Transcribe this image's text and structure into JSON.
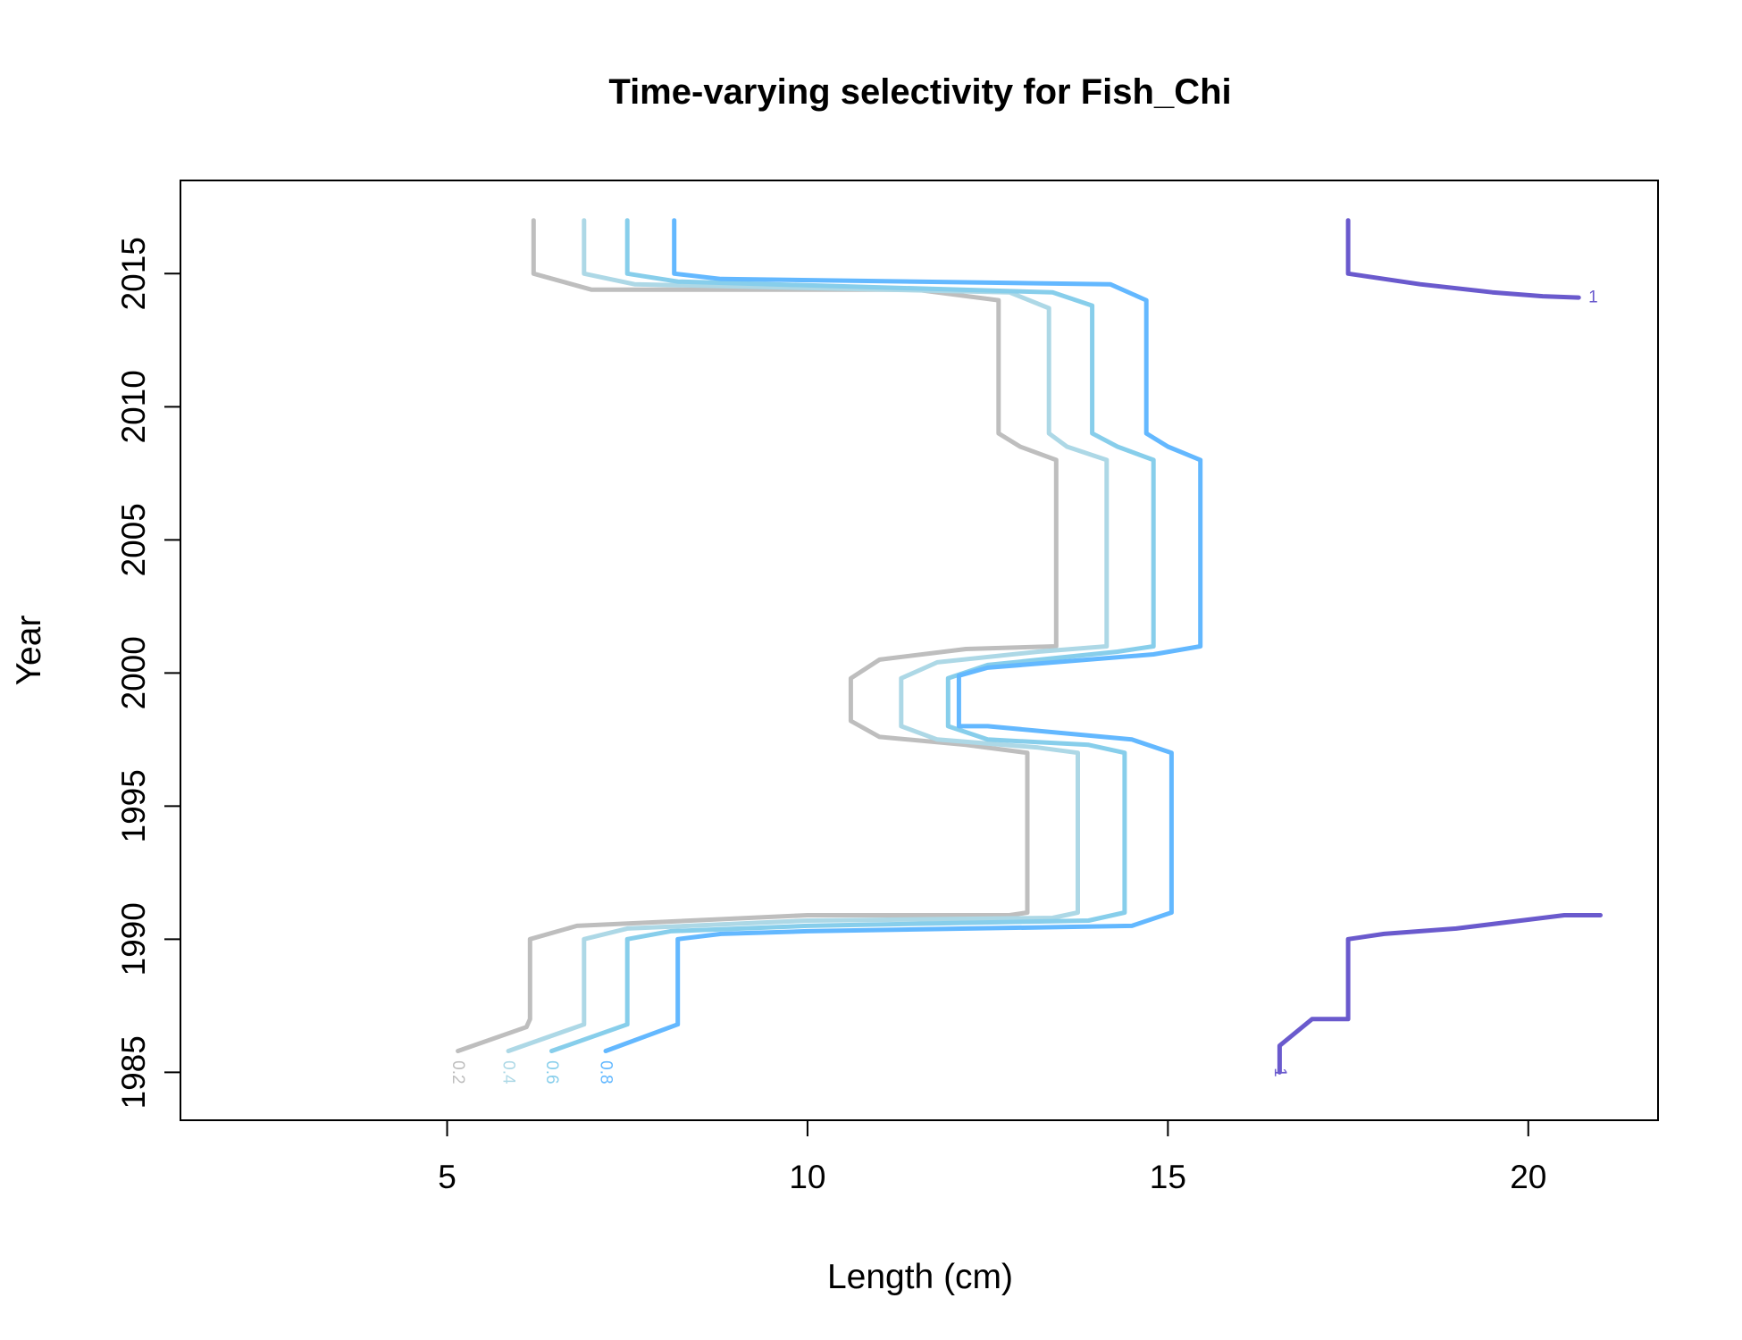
{
  "chart_data": {
    "type": "line",
    "title": "Time-varying selectivity for Fish_Chi",
    "xlabel": "Length (cm)",
    "ylabel": "Year",
    "xlim": [
      1.3,
      21.8
    ],
    "ylim": [
      1983.2,
      2018.5
    ],
    "xticks": [
      5,
      10,
      15,
      20
    ],
    "yticks": [
      1985,
      1990,
      1995,
      2000,
      2005,
      2010,
      2015
    ],
    "grid": false,
    "legend": "none",
    "series": [
      {
        "name": "0.2",
        "color": "#bebebe",
        "label_at": [
          5.15,
          1985.0
        ],
        "points": [
          [
            5.15,
            1985.8
          ],
          [
            6.1,
            1986.7
          ],
          [
            6.15,
            1987
          ],
          [
            6.15,
            1990
          ],
          [
            6.8,
            1990.5
          ],
          [
            10.0,
            1990.9
          ],
          [
            12.8,
            1990.9
          ],
          [
            13.05,
            1991
          ],
          [
            13.05,
            1997
          ],
          [
            12.2,
            1997.3
          ],
          [
            11.0,
            1997.6
          ],
          [
            10.6,
            1998.2
          ],
          [
            10.6,
            1999.8
          ],
          [
            11.0,
            2000.5
          ],
          [
            12.2,
            2000.9
          ],
          [
            13.45,
            2001
          ],
          [
            13.45,
            2008
          ],
          [
            12.95,
            2008.5
          ],
          [
            12.65,
            2009
          ],
          [
            12.65,
            2014
          ],
          [
            11.5,
            2014.4
          ],
          [
            7.0,
            2014.4
          ],
          [
            6.2,
            2015
          ],
          [
            6.2,
            2017
          ]
        ]
      },
      {
        "name": "0.4",
        "color": "#add8e6",
        "label_at": [
          5.85,
          1985.0
        ],
        "points": [
          [
            5.85,
            1985.8
          ],
          [
            6.9,
            1986.8
          ],
          [
            6.9,
            1990
          ],
          [
            7.5,
            1990.4
          ],
          [
            10.0,
            1990.7
          ],
          [
            13.4,
            1990.8
          ],
          [
            13.75,
            1991
          ],
          [
            13.75,
            1997
          ],
          [
            13.2,
            1997.2
          ],
          [
            11.8,
            1997.5
          ],
          [
            11.3,
            1998
          ],
          [
            11.3,
            1999.8
          ],
          [
            11.8,
            2000.4
          ],
          [
            13.2,
            2000.8
          ],
          [
            14.15,
            2001
          ],
          [
            14.15,
            2008
          ],
          [
            13.6,
            2008.5
          ],
          [
            13.35,
            2009
          ],
          [
            13.35,
            2013.7
          ],
          [
            12.8,
            2014.3
          ],
          [
            7.6,
            2014.6
          ],
          [
            6.9,
            2015
          ],
          [
            6.9,
            2017
          ]
        ]
      },
      {
        "name": "0.6",
        "color": "#87ceeb",
        "label_at": [
          6.45,
          1985.0
        ],
        "points": [
          [
            6.45,
            1985.8
          ],
          [
            7.5,
            1986.8
          ],
          [
            7.5,
            1990
          ],
          [
            8.1,
            1990.3
          ],
          [
            10.0,
            1990.5
          ],
          [
            13.9,
            1990.7
          ],
          [
            14.4,
            1991
          ],
          [
            14.4,
            1997
          ],
          [
            13.9,
            1997.3
          ],
          [
            12.5,
            1997.5
          ],
          [
            11.95,
            1998
          ],
          [
            11.95,
            1999.8
          ],
          [
            12.5,
            2000.3
          ],
          [
            14.3,
            2000.8
          ],
          [
            14.8,
            2001
          ],
          [
            14.8,
            2008
          ],
          [
            14.3,
            2008.5
          ],
          [
            13.95,
            2009
          ],
          [
            13.95,
            2013.8
          ],
          [
            13.4,
            2014.3
          ],
          [
            8.2,
            2014.7
          ],
          [
            7.5,
            2015
          ],
          [
            7.5,
            2017
          ]
        ]
      },
      {
        "name": "0.8",
        "color": "#63b8ff",
        "label_at": [
          7.2,
          1985.0
        ],
        "points": [
          [
            7.2,
            1985.8
          ],
          [
            8.2,
            1986.8
          ],
          [
            8.2,
            1990
          ],
          [
            8.8,
            1990.2
          ],
          [
            10.0,
            1990.3
          ],
          [
            14.5,
            1990.5
          ],
          [
            15.05,
            1991
          ],
          [
            15.05,
            1997
          ],
          [
            14.5,
            1997.5
          ],
          [
            12.5,
            1998
          ],
          [
            12.1,
            1998
          ],
          [
            12.1,
            1999.9
          ],
          [
            12.5,
            2000.2
          ],
          [
            14.8,
            2000.7
          ],
          [
            15.45,
            2001
          ],
          [
            15.45,
            2008
          ],
          [
            15.0,
            2008.5
          ],
          [
            14.7,
            2009
          ],
          [
            14.7,
            2014
          ],
          [
            14.2,
            2014.6
          ],
          [
            8.8,
            2014.8
          ],
          [
            8.15,
            2015
          ],
          [
            8.15,
            2017
          ]
        ]
      },
      {
        "name": "1",
        "color": "#6a5acd",
        "label_at": [
          16.55,
          1985.0
        ],
        "points": [
          [
            16.55,
            1985.0
          ],
          [
            16.55,
            1986.0
          ],
          [
            17.0,
            1987.0
          ],
          [
            17.5,
            1987.0
          ],
          [
            17.5,
            1990
          ],
          [
            18.0,
            1990.2
          ],
          [
            19.0,
            1990.4
          ],
          [
            20.5,
            1990.9
          ],
          [
            21.0,
            1990.9
          ]
        ]
      },
      {
        "name": "1",
        "color": "#6a5acd",
        "label_at": [
          20.9,
          2014.1
        ],
        "points": [
          [
            17.5,
            2017
          ],
          [
            17.5,
            2015
          ],
          [
            18.5,
            2014.6
          ],
          [
            19.5,
            2014.3
          ],
          [
            20.2,
            2014.15
          ],
          [
            20.7,
            2014.1
          ]
        ]
      }
    ]
  }
}
